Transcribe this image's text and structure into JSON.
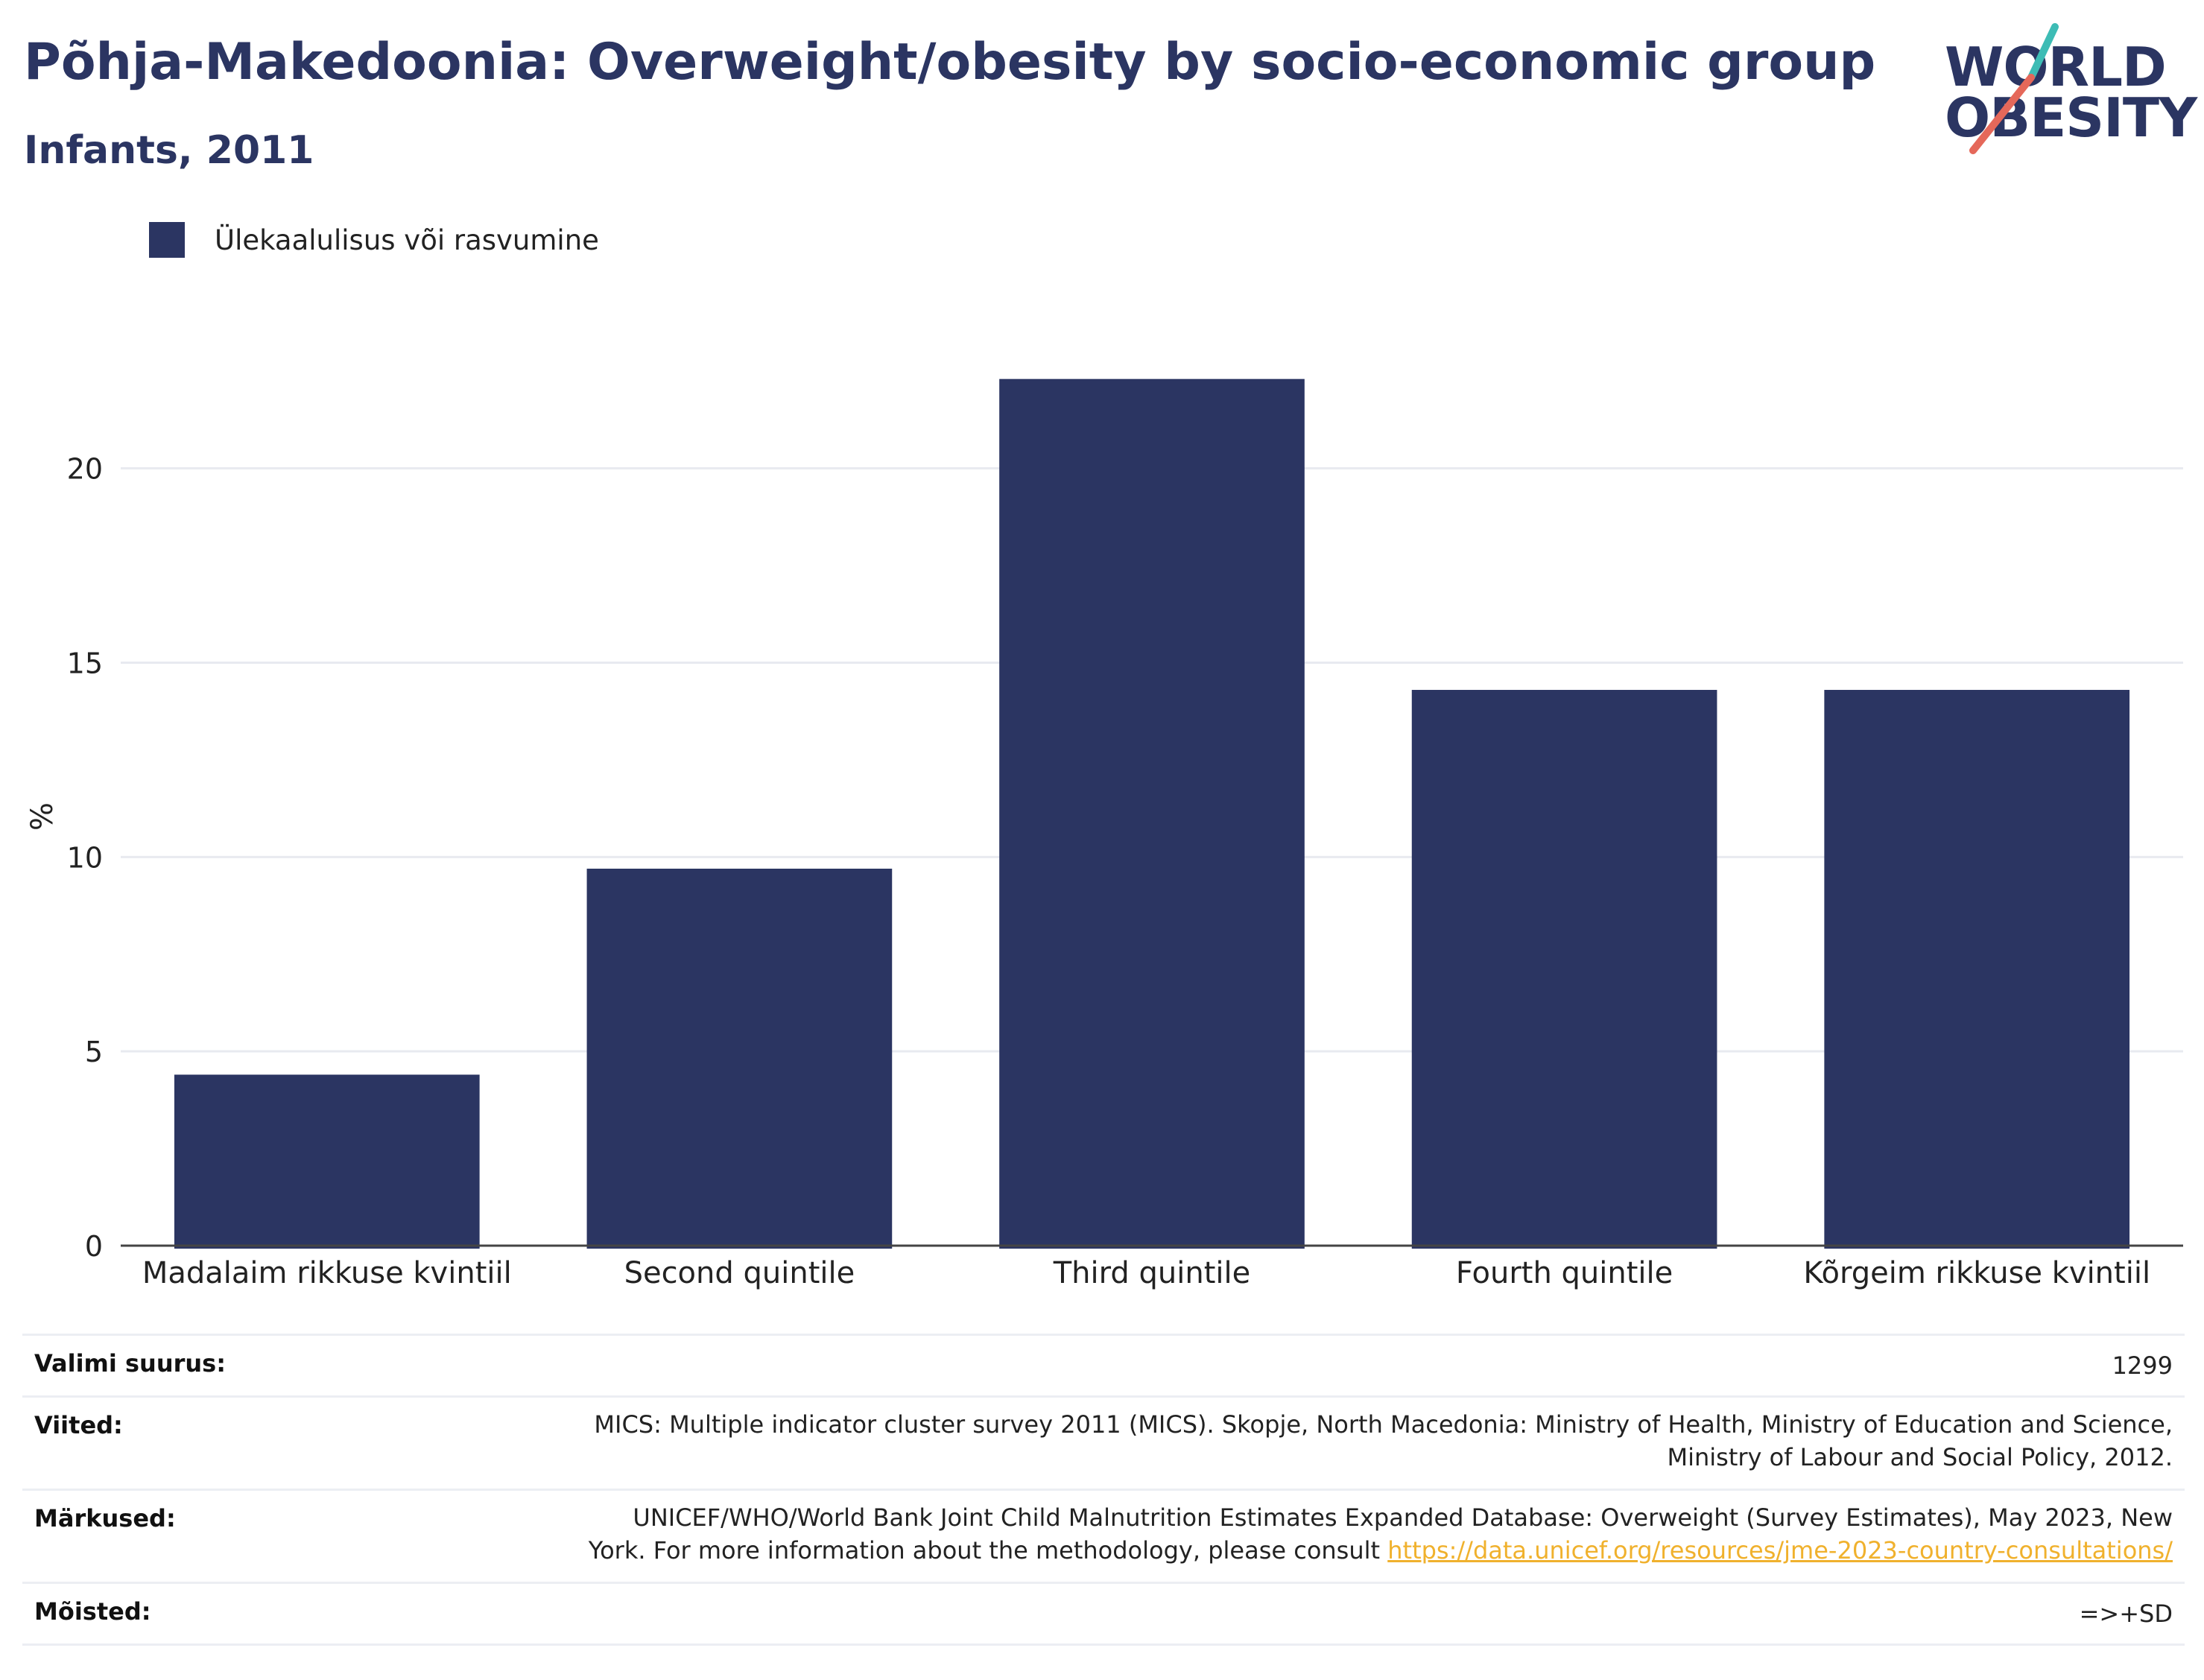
{
  "header": {
    "title": "Põhja-Makedoonia: Overweight/obesity by socio-economic group",
    "subtitle": "Infants, 2011"
  },
  "logo": {
    "line1": "WORLD",
    "line2": "OBESITY",
    "colors": {
      "text": "#2b3562",
      "slash_top": "#3dbcb5",
      "slash_bottom": "#e5685a"
    }
  },
  "legend": {
    "label": "Ülekaalulisus või rasvumine",
    "color": "#2b3562"
  },
  "chart_data": {
    "type": "bar",
    "categories": [
      "Madalaim rikkuse kvintiil",
      "Second quintile",
      "Third quintile",
      "Fourth quintile",
      "Kõrgeim rikkuse kvintiil"
    ],
    "series": [
      {
        "name": "Ülekaalulisus või rasvumine",
        "values": [
          4.4,
          9.7,
          22.3,
          14.3,
          14.3
        ],
        "color": "#2b3562"
      }
    ],
    "ylabel": "%",
    "ylim": [
      0,
      24
    ],
    "yticks": [
      0,
      5,
      10,
      15,
      20
    ],
    "grid": true,
    "legend_position": "top-left"
  },
  "info": {
    "sample_size": {
      "label": "Valimi suurus:",
      "value": "1299"
    },
    "references": {
      "label": "Viited:",
      "line1": "MICS: Multiple indicator cluster survey 2011 (MICS). Skopje, North Macedonia: Ministry of Health, Ministry of Education and Science,",
      "line2": "Ministry of Labour and Social Policy, 2012."
    },
    "notes": {
      "label": "Märkused:",
      "line1": "UNICEF/WHO/World Bank Joint Child Malnutrition Estimates Expanded Database: Overweight (Survey Estimates), May 2023, New",
      "line2": "York. For more information about the methodology, please consult",
      "link": "https://data.unicef.org/resources/jme-2023-country-consultations/"
    },
    "definitions": {
      "label": "Mõisted:",
      "value": "=>+SD"
    }
  }
}
